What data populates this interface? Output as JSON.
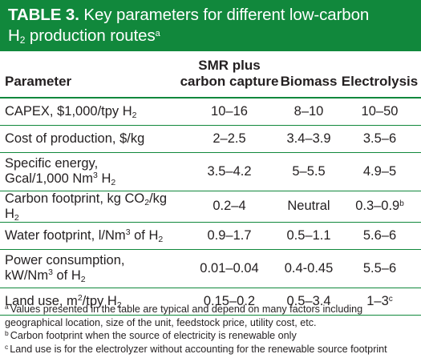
{
  "title": {
    "label": "TABLE 3.",
    "text_line1": "Key parameters for different low-carbon",
    "h_symbol": "H",
    "h_sub": "2",
    "text_line2": "production routes",
    "note_mark": "a"
  },
  "table": {
    "headers": [
      "Parameter",
      "SMR plus",
      "carbon capture",
      "Biomass",
      "Electrolysis"
    ],
    "rows": [
      {
        "p_pre": "CAPEX, $1,000/tpy H",
        "p_sub": "2",
        "smr": "10–16",
        "bio": "8–10",
        "elec": "10–50"
      },
      {
        "p_pre": "Cost of production, $/kg",
        "smr": "2–2.5",
        "bio": "3.4–3.9",
        "elec": "3.5–6"
      },
      {
        "p_line1": "Specific energy,",
        "p_pre": "Gcal/1,000 Nm",
        "p_sup": "3",
        "p_mid": " H",
        "p_sub": "2",
        "smr": "3.5–4.2",
        "bio": "5–5.5",
        "elec": "4.9–5"
      },
      {
        "p_pre": "Carbon footprint, kg CO",
        "p_sub": "2",
        "p_mid": "/kg H",
        "p_sub2": "2",
        "smr": "0.2–4",
        "bio": "Neutral",
        "elec": "0.3–0.9",
        "elec_note": "b"
      },
      {
        "p_pre": "Water footprint, l/Nm",
        "p_sup": "3",
        "p_mid": " of H",
        "p_sub": "2",
        "smr": "0.9–1.7",
        "bio": "0.5–1.1",
        "elec": "5.6–6"
      },
      {
        "p_line1": "Power consumption,",
        "p_pre": "kW/Nm",
        "p_sup": "3",
        "p_mid": " of H",
        "p_sub": "2",
        "smr": "0.01–0.04",
        "bio": "0.4-0.45",
        "elec": "5.5–6"
      },
      {
        "p_pre": "Land use, m",
        "p_sup": "2",
        "p_mid": "/tpy H",
        "p_sub": "2",
        "smr": "0.15–0.2",
        "bio": "0.5–3.4",
        "elec": "1–3",
        "elec_note": "c"
      }
    ]
  },
  "footnotes": [
    {
      "mark": "a",
      "line1": "Values presented in the table are typical and depend on many factors including",
      "line2": "geographical location, size of the unit, feedstock price, utility cost, etc."
    },
    {
      "mark": "b",
      "line1": "Carbon footprint when the source of electricity is renewable only"
    },
    {
      "mark": "c",
      "line1": "Land use is for the electrolyzer without accounting for the renewable source footprint"
    }
  ],
  "colors": {
    "accent": "#11883c",
    "text": "#231f20",
    "title_text": "#ffffff"
  }
}
